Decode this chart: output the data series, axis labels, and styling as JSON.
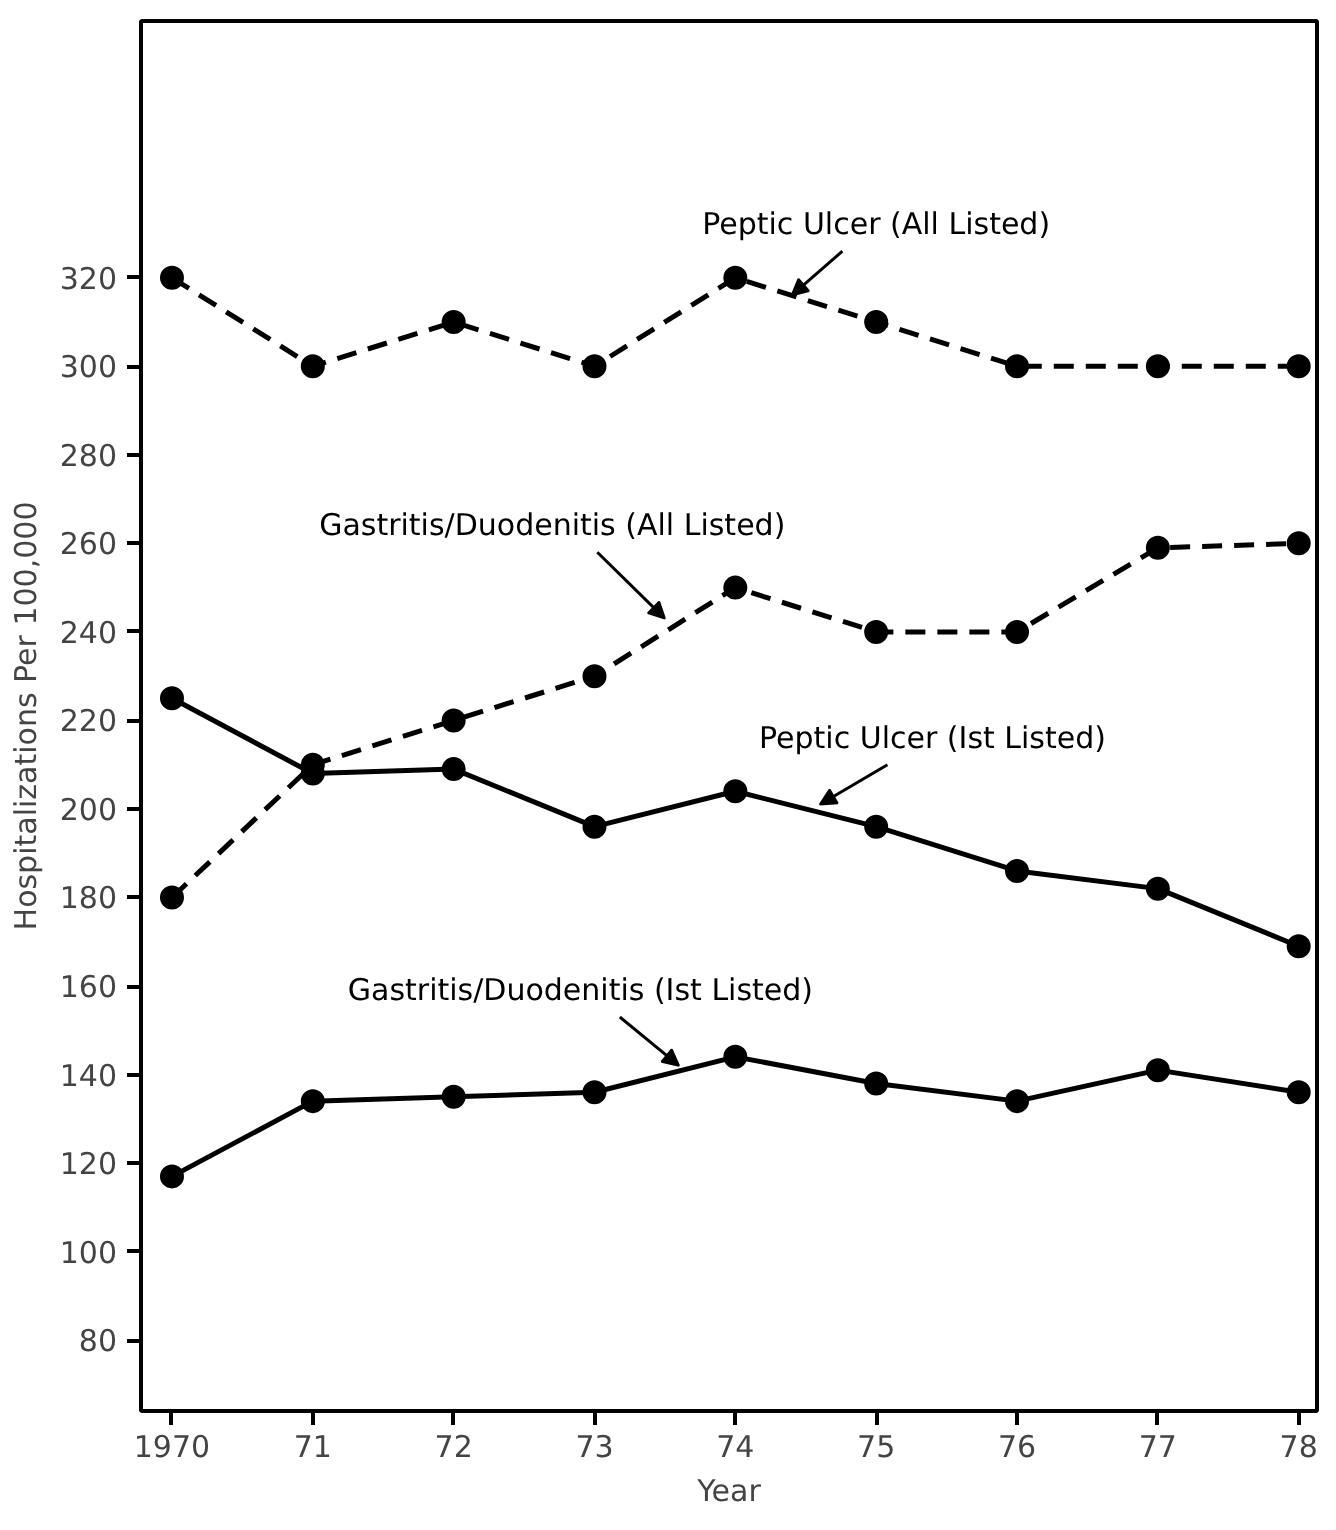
{
  "chart_data": {
    "type": "line",
    "xlabel": "Year",
    "ylabel": "Hospitalizations Per 100,000",
    "x": [
      1970,
      1971,
      1972,
      1973,
      1974,
      1975,
      1976,
      1977,
      1978
    ],
    "series": [
      {
        "name": "Peptic Ulcer (All Listed)",
        "color": "#000000",
        "line_style": "dashed",
        "values": [
          320,
          300,
          310,
          300,
          320,
          310,
          300,
          300,
          300
        ]
      },
      {
        "name": "Gastritis/Duodenitis (All Listed)",
        "color": "#000000",
        "line_style": "dashed",
        "values": [
          180,
          210,
          220,
          230,
          250,
          240,
          240,
          259,
          260
        ]
      },
      {
        "name": "Peptic Ulcer (Ist Listed)",
        "color": "#000000",
        "line_style": "solid",
        "values": [
          225,
          208,
          209,
          196,
          204,
          196,
          186,
          182,
          169
        ]
      },
      {
        "name": "Gastritis/Duodenitis (Ist Listed)",
        "color": "#000000",
        "line_style": "solid",
        "values": [
          117,
          134,
          135,
          136,
          144,
          138,
          134,
          141,
          136
        ]
      }
    ],
    "xlim": [
      1969.78,
      1978.13
    ],
    "ylim": [
      64,
      378
    ],
    "xticks": [
      {
        "value": 1970,
        "label": "1970"
      },
      {
        "value": 1971,
        "label": "71"
      },
      {
        "value": 1972,
        "label": "72"
      },
      {
        "value": 1973,
        "label": "73"
      },
      {
        "value": 1974,
        "label": "74"
      },
      {
        "value": 1975,
        "label": "75"
      },
      {
        "value": 1976,
        "label": "76"
      },
      {
        "value": 1977,
        "label": "77"
      },
      {
        "value": 1978,
        "label": "78"
      }
    ],
    "yticks": [
      80,
      100,
      120,
      140,
      160,
      180,
      200,
      220,
      240,
      260,
      280,
      300,
      320
    ],
    "marker": "circle",
    "grid": false
  }
}
